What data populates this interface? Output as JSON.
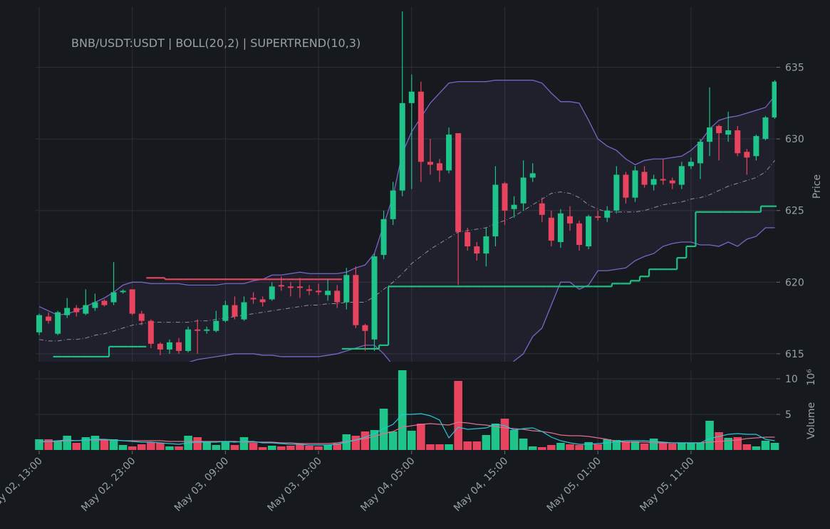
{
  "chart_data": {
    "type": "candlestick",
    "title": "BNB/USDT:USDT | BOLL(20,2) | SUPERTREND(10,3)",
    "y_label": "Price",
    "categories": [
      "May 02, 13:00",
      null,
      null,
      null,
      null,
      null,
      null,
      null,
      null,
      null,
      "May 02, 23:00",
      null,
      null,
      null,
      null,
      null,
      null,
      null,
      null,
      null,
      "May 03, 09:00",
      null,
      null,
      null,
      null,
      null,
      null,
      null,
      null,
      null,
      "May 03, 19:00",
      null,
      null,
      null,
      null,
      null,
      null,
      null,
      null,
      null,
      "May 04, 05:00",
      null,
      null,
      null,
      null,
      null,
      null,
      null,
      null,
      null,
      "May 04, 15:00",
      null,
      null,
      null,
      null,
      null,
      null,
      null,
      null,
      null,
      "May 05, 01:00",
      null,
      null,
      null,
      null,
      null,
      null,
      null,
      null,
      null,
      "May 05, 11:00",
      null,
      null,
      null,
      null,
      null,
      null,
      null,
      null,
      null
    ],
    "open": [
      616.5,
      617.6,
      616.4,
      617.7,
      618.2,
      617.8,
      618.2,
      618.7,
      618.6,
      619.3,
      619.5,
      617.8,
      617.3,
      615.7,
      615.3,
      615.8,
      615.2,
      616.7,
      616.6,
      616.6,
      617.3,
      618.4,
      617.4,
      618.9,
      618.8,
      618.8,
      619.8,
      619.7,
      619.7,
      619.5,
      619.4,
      619.1,
      619.4,
      618.6,
      620.5,
      617.0,
      616.0,
      621.9,
      624.4,
      626.4,
      632.5,
      633.3,
      628.4,
      628.3,
      627.8,
      630.4,
      623.5,
      622.5,
      622.0,
      623.2,
      626.9,
      625.1,
      625.5,
      627.3,
      625.5,
      624.5,
      622.8,
      624.6,
      624.1,
      622.5,
      624.6,
      624.5,
      625.0,
      627.5,
      625.9,
      627.7,
      626.8,
      627.2,
      627.1,
      626.8,
      628.1,
      628.3,
      629.8,
      630.9,
      630.3,
      630.6,
      629.1,
      628.8,
      630.0,
      631.5
    ],
    "high": [
      617.8,
      617.9,
      618.0,
      618.9,
      618.4,
      619.5,
      619.2,
      618.8,
      621.4,
      619.5,
      619.5,
      618.0,
      617.4,
      615.8,
      616.0,
      616.1,
      616.9,
      617.4,
      616.9,
      618.0,
      618.7,
      619.0,
      619.0,
      619.3,
      619.0,
      620.0,
      620.4,
      620.0,
      620.3,
      619.8,
      619.9,
      620.2,
      619.8,
      621.0,
      621.1,
      617.1,
      622.0,
      625.0,
      627.0,
      638.9,
      634.5,
      634.0,
      630.0,
      628.6,
      630.8,
      630.4,
      623.8,
      622.8,
      623.8,
      628.1,
      627.0,
      626.0,
      628.5,
      628.3,
      625.9,
      625.0,
      625.1,
      625.3,
      624.3,
      624.7,
      625.0,
      625.3,
      628.1,
      627.7,
      628.1,
      628.1,
      627.5,
      628.6,
      627.3,
      628.4,
      628.7,
      630.0,
      633.6,
      631.0,
      631.9,
      630.9,
      629.3,
      630.3,
      631.6,
      634.1
    ],
    "low": [
      616.3,
      617.1,
      616.3,
      617.5,
      617.6,
      617.7,
      618.0,
      618.3,
      618.4,
      619.2,
      617.7,
      617.0,
      615.4,
      614.9,
      615.0,
      615.0,
      615.1,
      615.0,
      616.4,
      616.5,
      617.2,
      617.4,
      617.3,
      618.5,
      618.3,
      618.7,
      619.4,
      619.0,
      618.9,
      619.1,
      619.1,
      618.7,
      618.2,
      618.1,
      616.8,
      615.2,
      615.2,
      621.6,
      624.0,
      626.0,
      626.5,
      627.0,
      627.5,
      627.0,
      627.6,
      619.8,
      622.2,
      621.5,
      621.1,
      622.5,
      624.0,
      624.5,
      625.0,
      627.0,
      624.2,
      622.5,
      622.4,
      623.6,
      622.2,
      622.3,
      624.3,
      624.2,
      624.8,
      625.5,
      625.6,
      626.6,
      626.4,
      626.8,
      626.5,
      626.5,
      627.9,
      627.2,
      628.8,
      628.5,
      629.8,
      628.8,
      627.5,
      628.5,
      629.9,
      631.4
    ],
    "close": [
      617.7,
      617.3,
      617.9,
      618.2,
      617.9,
      618.4,
      618.6,
      618.4,
      619.3,
      619.4,
      617.8,
      617.3,
      615.7,
      615.3,
      615.8,
      615.2,
      616.7,
      616.6,
      616.7,
      617.3,
      618.4,
      617.6,
      618.6,
      618.8,
      618.6,
      619.7,
      619.7,
      619.6,
      619.6,
      619.4,
      619.3,
      619.4,
      618.6,
      620.5,
      617.0,
      616.6,
      621.8,
      624.4,
      626.4,
      632.5,
      633.3,
      628.4,
      628.2,
      627.8,
      630.3,
      623.5,
      622.5,
      622.0,
      623.2,
      626.8,
      625.0,
      625.4,
      627.3,
      627.6,
      624.7,
      622.9,
      624.8,
      624.1,
      622.6,
      624.6,
      624.5,
      625.0,
      627.5,
      625.9,
      627.8,
      626.8,
      627.2,
      627.1,
      626.9,
      628.1,
      628.4,
      629.8,
      630.8,
      630.4,
      630.6,
      629.0,
      628.7,
      630.2,
      631.5,
      634.0
    ],
    "up_color": "#1ec48a",
    "down_color": "#e8445f",
    "ylim": [
      614.45,
      639.2
    ],
    "yticks": [
      615,
      620,
      625,
      630,
      635
    ],
    "grid": true,
    "bollinger": {
      "color": "#7866c8",
      "fill": "rgba(120,110,200,0.09)",
      "mid_color": "#8e8e9c",
      "upper": [
        618.3,
        618.0,
        617.7,
        617.8,
        618.0,
        618.3,
        618.6,
        618.9,
        619.3,
        619.8,
        620.0,
        620.0,
        619.9,
        619.9,
        619.9,
        619.9,
        619.8,
        619.8,
        619.8,
        619.8,
        619.9,
        619.9,
        619.9,
        620.1,
        620.2,
        620.5,
        620.5,
        620.6,
        620.7,
        620.6,
        620.6,
        620.6,
        620.6,
        620.7,
        621.0,
        621.2,
        622.0,
        624.0,
        626.0,
        629.0,
        630.5,
        631.5,
        632.5,
        633.2,
        633.9,
        634.0,
        634.0,
        634.0,
        634.0,
        634.1,
        634.1,
        634.1,
        634.1,
        634.1,
        633.9,
        633.2,
        632.6,
        632.6,
        632.5,
        631.3,
        630.0,
        629.5,
        629.2,
        628.6,
        628.2,
        628.5,
        628.6,
        628.6,
        628.7,
        628.8,
        629.2,
        629.8,
        630.7,
        631.3,
        631.5,
        631.6,
        631.8,
        632.0,
        632.2,
        633.0
      ],
      "middle": [
        616.0,
        615.9,
        615.9,
        616.0,
        616.0,
        616.1,
        616.3,
        616.4,
        616.6,
        616.8,
        617.0,
        617.1,
        617.2,
        617.2,
        617.2,
        617.2,
        617.2,
        617.3,
        617.3,
        617.4,
        617.5,
        617.6,
        617.7,
        617.8,
        617.9,
        618.0,
        618.1,
        618.2,
        618.3,
        618.4,
        618.4,
        618.5,
        618.5,
        618.6,
        618.6,
        618.6,
        619.0,
        619.5,
        620.0,
        620.6,
        621.3,
        621.8,
        622.3,
        622.7,
        623.1,
        623.5,
        623.6,
        623.7,
        623.8,
        624.1,
        624.3,
        624.6,
        625.0,
        625.4,
        625.8,
        626.2,
        626.3,
        626.2,
        625.9,
        625.4,
        625.1,
        624.9,
        624.9,
        624.9,
        624.9,
        625.0,
        625.2,
        625.4,
        625.5,
        625.6,
        625.8,
        625.9,
        626.1,
        626.4,
        626.7,
        626.9,
        627.1,
        627.3,
        627.7,
        628.5
      ],
      "lower": [
        613.7,
        613.9,
        614.0,
        614.2,
        614.1,
        613.9,
        613.9,
        613.9,
        613.8,
        613.8,
        613.9,
        614.1,
        614.2,
        614.2,
        614.3,
        614.4,
        614.4,
        614.6,
        614.7,
        614.8,
        614.9,
        615.0,
        615.0,
        615.0,
        614.9,
        614.9,
        614.8,
        614.8,
        614.8,
        614.8,
        614.8,
        614.9,
        615.0,
        615.2,
        615.4,
        615.6,
        615.6,
        615.0,
        614.2,
        612.3,
        612.0,
        611.8,
        611.6,
        611.5,
        611.4,
        611.5,
        611.8,
        612.0,
        612.0,
        612.4,
        613.4,
        614.5,
        615.0,
        616.2,
        616.8,
        618.4,
        620.0,
        620.0,
        619.5,
        619.8,
        620.8,
        620.8,
        620.9,
        621.0,
        621.5,
        621.8,
        622.0,
        622.5,
        622.7,
        622.8,
        622.8,
        622.6,
        622.6,
        622.5,
        622.8,
        622.5,
        623.0,
        623.2,
        623.8,
        623.8
      ]
    },
    "supertrend": {
      "long_color": "#1ebf82",
      "short_color": "#e8445f",
      "long": [
        null,
        null,
        614.8,
        614.8,
        614.8,
        614.8,
        614.8,
        614.8,
        615.5,
        615.5,
        615.5,
        615.5,
        null,
        null,
        null,
        null,
        null,
        null,
        null,
        null,
        null,
        null,
        null,
        null,
        null,
        null,
        null,
        null,
        null,
        null,
        null,
        null,
        null,
        615.35,
        615.35,
        615.35,
        615.35,
        615.6,
        619.7,
        619.7,
        619.7,
        619.7,
        619.7,
        619.7,
        619.7,
        619.7,
        619.7,
        619.7,
        619.7,
        619.7,
        619.7,
        619.7,
        619.7,
        619.7,
        619.7,
        619.7,
        619.7,
        619.7,
        619.7,
        619.7,
        619.7,
        619.7,
        619.9,
        619.9,
        620.1,
        620.4,
        620.9,
        620.9,
        620.9,
        621.7,
        622.5,
        624.9,
        624.9,
        624.9,
        624.9,
        624.9,
        624.9,
        624.9,
        625.3,
        625.3
      ],
      "short": [
        null,
        null,
        null,
        null,
        null,
        null,
        null,
        null,
        null,
        null,
        null,
        null,
        620.3,
        620.3,
        620.2,
        620.2,
        620.2,
        620.2,
        620.2,
        620.2,
        620.2,
        620.2,
        620.2,
        620.2,
        620.2,
        620.2,
        620.2,
        620.2,
        620.2,
        620.2,
        620.2,
        620.2,
        620.2,
        null,
        null,
        null,
        null,
        null,
        null,
        null,
        null,
        null,
        null,
        null,
        null,
        null,
        null,
        null,
        null,
        null,
        null,
        null,
        null,
        null,
        null,
        null,
        null,
        null,
        null,
        null,
        null,
        null,
        null,
        null,
        null,
        null,
        null,
        null,
        null,
        null,
        null,
        null,
        null,
        null,
        null,
        null,
        null,
        null,
        null,
        null
      ]
    },
    "volume_panel": {
      "label": "Volume",
      "offset_label": "10⁶",
      "ylim": [
        0,
        11.2
      ],
      "yticks": [
        5,
        10
      ],
      "values": [
        1.5,
        1.5,
        1.2,
        2.0,
        1.0,
        1.8,
        2.0,
        1.5,
        1.5,
        0.7,
        0.5,
        0.8,
        1.1,
        1.0,
        0.5,
        0.5,
        2.0,
        1.8,
        1.2,
        0.7,
        1.2,
        0.7,
        1.8,
        1.0,
        0.4,
        0.6,
        0.5,
        0.6,
        0.8,
        0.6,
        0.5,
        0.7,
        0.9,
        2.2,
        2.0,
        2.6,
        2.8,
        5.8,
        2.6,
        11.2,
        2.7,
        3.7,
        0.8,
        0.8,
        0.8,
        9.7,
        1.2,
        1.2,
        2.1,
        3.7,
        4.4,
        2.8,
        1.6,
        0.5,
        0.4,
        0.7,
        1.0,
        0.8,
        0.7,
        1.1,
        0.8,
        1.5,
        1.4,
        1.2,
        1.2,
        0.9,
        1.6,
        1.0,
        0.9,
        1.0,
        1.0,
        1.0,
        4.1,
        2.5,
        1.7,
        1.8,
        0.8,
        0.5,
        1.3,
        1.0
      ],
      "ma_fast_color": "#2bc7d8",
      "ma_fast": [
        1.2,
        1.2,
        1.3,
        1.4,
        1.3,
        1.4,
        1.5,
        1.5,
        1.4,
        1.3,
        1.2,
        1.1,
        1.1,
        1.0,
        0.9,
        0.8,
        1.0,
        1.1,
        1.1,
        1.1,
        1.2,
        1.1,
        1.2,
        1.2,
        1.0,
        1.0,
        0.9,
        0.8,
        0.8,
        0.7,
        0.7,
        0.7,
        0.8,
        1.1,
        1.4,
        1.8,
        2.3,
        3.0,
        3.6,
        5.0,
        5.0,
        5.1,
        4.8,
        4.2,
        1.7,
        3.2,
        2.9,
        3.0,
        3.1,
        3.6,
        3.4,
        2.8,
        3.0,
        3.1,
        2.6,
        1.8,
        1.3,
        1.0,
        0.8,
        0.8,
        0.9,
        1.0,
        1.2,
        1.3,
        1.3,
        1.3,
        1.2,
        1.1,
        1.0,
        1.0,
        1.0,
        1.0,
        1.6,
        1.9,
        2.2,
        2.3,
        2.2,
        2.2,
        1.5,
        1.3
      ],
      "ma_slow_color": "#e0708f",
      "ma_slow": [
        1.1,
        1.2,
        1.2,
        1.3,
        1.3,
        1.4,
        1.4,
        1.4,
        1.4,
        1.3,
        1.3,
        1.3,
        1.3,
        1.3,
        1.2,
        1.2,
        1.2,
        1.2,
        1.2,
        1.2,
        1.2,
        1.2,
        1.1,
        1.1,
        1.1,
        1.1,
        1.0,
        1.0,
        0.9,
        0.9,
        0.9,
        0.9,
        1.0,
        1.2,
        1.4,
        1.6,
        1.9,
        2.3,
        2.6,
        3.2,
        3.4,
        3.6,
        3.7,
        3.6,
        3.5,
        3.9,
        3.8,
        3.6,
        3.5,
        3.3,
        3.1,
        3.0,
        2.9,
        2.7,
        2.6,
        2.4,
        2.1,
        2.0,
        2.0,
        1.9,
        1.7,
        1.5,
        1.2,
        1.1,
        1.1,
        1.1,
        1.0,
        1.0,
        1.0,
        1.0,
        1.0,
        1.0,
        1.1,
        1.2,
        1.3,
        1.4,
        1.6,
        1.7,
        1.8,
        1.8
      ]
    }
  }
}
